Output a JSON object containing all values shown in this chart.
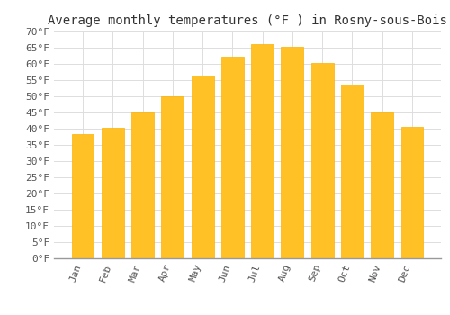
{
  "months": [
    "Jan",
    "Feb",
    "Mar",
    "Apr",
    "May",
    "Jun",
    "Jul",
    "Aug",
    "Sep",
    "Oct",
    "Nov",
    "Dec"
  ],
  "values": [
    38.3,
    40.3,
    45.0,
    50.0,
    56.3,
    62.1,
    66.0,
    65.3,
    60.3,
    53.6,
    45.0,
    40.5
  ],
  "bar_color_main": "#FFC125",
  "bar_color_edge": "#FFB000",
  "title": "Average monthly temperatures (°F ) in Rosny-sous-Bois",
  "ylim": [
    0,
    70
  ],
  "ytick_step": 5,
  "background_color": "#FFFFFF",
  "grid_color": "#DDDDDD",
  "title_fontsize": 10,
  "tick_fontsize": 8,
  "bar_width": 0.75
}
